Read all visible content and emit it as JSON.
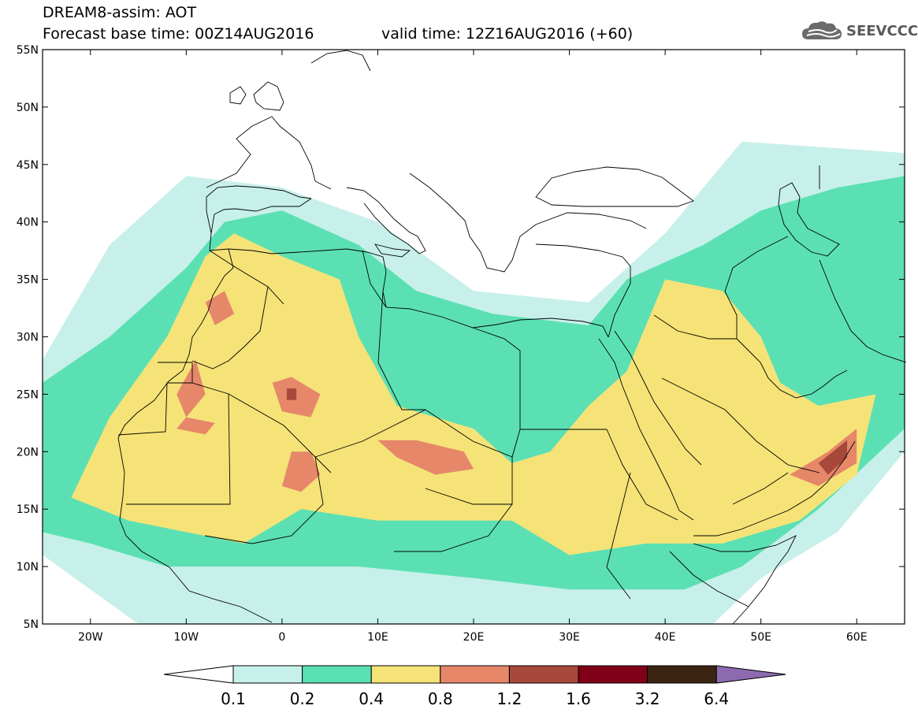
{
  "header": {
    "line1": "DREAM8-assim: AOT",
    "line2": "Forecast base time: 00Z14AUG2016",
    "valid": "valid time: 12Z16AUG2016 (+60)",
    "logo_text": "SEEVCCC",
    "logo_icon": "cloud-icon"
  },
  "map": {
    "lon_range": [
      -25,
      65
    ],
    "lat_range": [
      5,
      55
    ],
    "lat_ticks": [
      {
        "v": 55,
        "label": "55N"
      },
      {
        "v": 50,
        "label": "50N"
      },
      {
        "v": 45,
        "label": "45N"
      },
      {
        "v": 40,
        "label": "40N"
      },
      {
        "v": 35,
        "label": "35N"
      },
      {
        "v": 30,
        "label": "30N"
      },
      {
        "v": 25,
        "label": "25N"
      },
      {
        "v": 20,
        "label": "20N"
      },
      {
        "v": 15,
        "label": "15N"
      },
      {
        "v": 10,
        "label": "10N"
      },
      {
        "v": 5,
        "label": "5N"
      }
    ],
    "lon_ticks": [
      {
        "v": -20,
        "label": "20W"
      },
      {
        "v": -10,
        "label": "10W"
      },
      {
        "v": 0,
        "label": "0"
      },
      {
        "v": 10,
        "label": "10E"
      },
      {
        "v": 20,
        "label": "20E"
      },
      {
        "v": 30,
        "label": "30E"
      },
      {
        "v": 40,
        "label": "40E"
      },
      {
        "v": 50,
        "label": "50E"
      },
      {
        "v": 60,
        "label": "60E"
      }
    ],
    "aot_regions": [
      {
        "level": "0.1-0.2",
        "color": "#c8f0ea",
        "poly": [
          [
            -25,
            11
          ],
          [
            -25,
            28
          ],
          [
            -18,
            38
          ],
          [
            -10,
            44
          ],
          [
            0,
            43
          ],
          [
            10,
            40
          ],
          [
            20,
            34
          ],
          [
            32,
            33
          ],
          [
            40,
            39
          ],
          [
            48,
            47
          ],
          [
            65,
            46
          ],
          [
            65,
            20
          ],
          [
            58,
            13
          ],
          [
            50,
            9
          ],
          [
            45,
            5
          ],
          [
            -15,
            5
          ],
          [
            -20,
            8
          ]
        ]
      },
      {
        "level": "0.2-0.4",
        "color": "#5be0b4",
        "poly": [
          [
            -25,
            13
          ],
          [
            -25,
            26
          ],
          [
            -18,
            30
          ],
          [
            -10,
            36
          ],
          [
            -6,
            40
          ],
          [
            0,
            41
          ],
          [
            8,
            38
          ],
          [
            14,
            34
          ],
          [
            22,
            32
          ],
          [
            32,
            31
          ],
          [
            36,
            35
          ],
          [
            44,
            38
          ],
          [
            50,
            41
          ],
          [
            58,
            43
          ],
          [
            65,
            44
          ],
          [
            65,
            22
          ],
          [
            56,
            15
          ],
          [
            48,
            10
          ],
          [
            42,
            8
          ],
          [
            30,
            8
          ],
          [
            20,
            9
          ],
          [
            8,
            10
          ],
          [
            -5,
            10
          ],
          [
            -12,
            10
          ],
          [
            -20,
            12
          ]
        ]
      },
      {
        "level": "0.4-0.8",
        "color": "#f5e377",
        "poly": [
          [
            -22,
            16
          ],
          [
            -18,
            23
          ],
          [
            -12,
            30
          ],
          [
            -8,
            37
          ],
          [
            -5,
            39
          ],
          [
            0,
            37
          ],
          [
            6,
            35
          ],
          [
            8,
            30
          ],
          [
            12,
            24
          ],
          [
            20,
            22
          ],
          [
            24,
            19
          ],
          [
            28,
            20
          ],
          [
            32,
            24
          ],
          [
            36,
            27
          ],
          [
            38,
            31
          ],
          [
            40,
            35
          ],
          [
            46,
            34
          ],
          [
            50,
            30
          ],
          [
            52,
            26
          ],
          [
            56,
            24
          ],
          [
            62,
            25
          ],
          [
            60,
            18
          ],
          [
            54,
            14
          ],
          [
            46,
            12
          ],
          [
            38,
            12
          ],
          [
            30,
            11
          ],
          [
            24,
            14
          ],
          [
            18,
            14
          ],
          [
            10,
            14
          ],
          [
            2,
            15
          ],
          [
            -4,
            12
          ],
          [
            -10,
            13
          ],
          [
            -16,
            14
          ]
        ]
      },
      {
        "level": "0.8-1.2",
        "color": "#e6876a",
        "poly": [
          [
            -11,
            25
          ],
          [
            -9,
            28
          ],
          [
            -8,
            25
          ],
          [
            -10,
            23
          ]
        ]
      },
      {
        "level": "0.8-1.2",
        "color": "#e6876a",
        "poly": [
          [
            -1,
            26
          ],
          [
            1,
            26.5
          ],
          [
            4,
            25
          ],
          [
            3,
            23
          ],
          [
            0,
            23.5
          ]
        ]
      },
      {
        "level": "0.8-1.2",
        "color": "#e6876a",
        "poly": [
          [
            10,
            21
          ],
          [
            14,
            21
          ],
          [
            19,
            20
          ],
          [
            20,
            18.5
          ],
          [
            16,
            18
          ],
          [
            12,
            19.5
          ]
        ]
      },
      {
        "level": "0.8-1.2",
        "color": "#e6876a",
        "poly": [
          [
            1,
            20
          ],
          [
            3,
            20
          ],
          [
            4,
            18
          ],
          [
            2,
            16.5
          ],
          [
            0,
            17
          ]
        ]
      },
      {
        "level": "0.8-1.2",
        "color": "#e6876a",
        "poly": [
          [
            -10,
            23
          ],
          [
            -7,
            22.5
          ],
          [
            -8,
            21.5
          ],
          [
            -11,
            22
          ]
        ]
      },
      {
        "level": "0.8-1.2",
        "color": "#e6876a",
        "poly": [
          [
            53,
            18
          ],
          [
            57,
            20
          ],
          [
            60,
            22
          ],
          [
            60,
            19
          ],
          [
            56,
            17
          ]
        ]
      },
      {
        "level": "0.8-1.2",
        "color": "#e6876a",
        "poly": [
          [
            -8,
            33
          ],
          [
            -6,
            34
          ],
          [
            -5,
            32
          ],
          [
            -7,
            31
          ]
        ]
      },
      {
        "level": "1.2-1.6",
        "color": "#a7493a",
        "poly": [
          [
            56,
            19
          ],
          [
            59,
            21
          ],
          [
            59,
            19.5
          ],
          [
            57,
            18
          ]
        ]
      },
      {
        "level": "1.2-1.6",
        "color": "#a7493a",
        "poly": [
          [
            0.5,
            25.5
          ],
          [
            1.5,
            25.5
          ],
          [
            1.5,
            24.5
          ],
          [
            0.5,
            24.5
          ]
        ]
      }
    ]
  },
  "colorbar": {
    "labels": [
      "0.1",
      "0.2",
      "0.4",
      "0.8",
      "1.2",
      "1.6",
      "3.2",
      "6.4"
    ],
    "colors": [
      "#ffffff",
      "#c8f0ea",
      "#5be0b4",
      "#f5e377",
      "#e6876a",
      "#a7493a",
      "#800018",
      "#3b2411",
      "#8e6bb0"
    ]
  }
}
